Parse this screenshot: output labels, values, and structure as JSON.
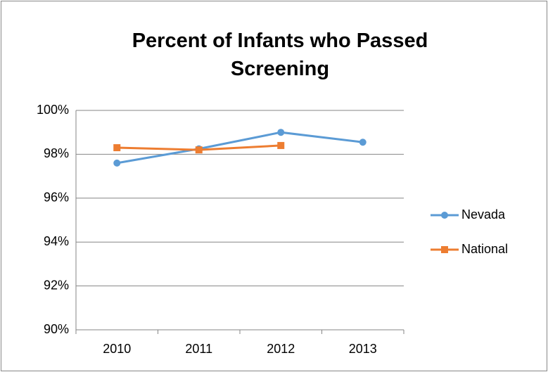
{
  "chart_data": {
    "type": "line",
    "title": "Percent of Infants who Passed Screening",
    "categories": [
      "2010",
      "2011",
      "2012",
      "2013"
    ],
    "series": [
      {
        "name": "Nevada",
        "color": "#5b9bd5",
        "marker": "circle",
        "values": [
          97.6,
          98.25,
          99.0,
          98.55
        ]
      },
      {
        "name": "National",
        "color": "#ed7d31",
        "marker": "square",
        "values": [
          98.3,
          98.2,
          98.4,
          null
        ]
      }
    ],
    "ylim": [
      90,
      100
    ],
    "yticks": [
      {
        "value": 90,
        "label": "90%"
      },
      {
        "value": 92,
        "label": "92%"
      },
      {
        "value": 94,
        "label": "94%"
      },
      {
        "value": 96,
        "label": "96%"
      },
      {
        "value": 98,
        "label": "98%"
      },
      {
        "value": 100,
        "label": "100%"
      }
    ],
    "grid": true,
    "legend": "right"
  }
}
